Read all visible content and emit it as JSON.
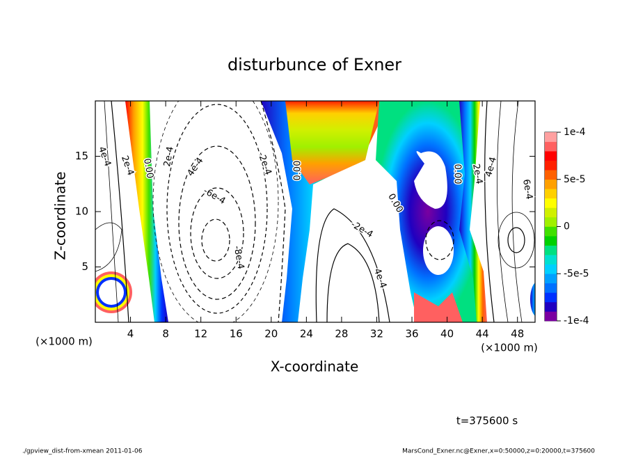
{
  "chart_data": {
    "type": "contour",
    "title": "disturbunce of Exner",
    "x_label": "X-coordinate",
    "y_label": "Z-coordinate",
    "x_unit": "(×1000 m)",
    "y_unit": "(×1000 m)",
    "xlim": [
      0,
      50
    ],
    "xticks": [
      4,
      8,
      12,
      16,
      20,
      24,
      28,
      32,
      36,
      40,
      44,
      48
    ],
    "ylim": [
      0,
      20
    ],
    "yticks": [
      5,
      10,
      15
    ],
    "clim": [
      -0.0001,
      0.0001
    ],
    "cticks": [
      {
        "value": 0.0001,
        "label": "1e-4"
      },
      {
        "value": 5e-05,
        "label": "5e-5"
      },
      0,
      {
        "value": -5e-05,
        "label": "-5e-5"
      },
      {
        "value": -0.0001,
        "label": "-1e-4"
      }
    ],
    "colormap": [
      "#7a00a0",
      "#2000c0",
      "#0030ff",
      "#0070ff",
      "#00a0ff",
      "#00d0ff",
      "#00e0d0",
      "#00e080",
      "#00d000",
      "#40e000",
      "#a0f000",
      "#d0f000",
      "#ffff00",
      "#ffd000",
      "#ffa000",
      "#ff6000",
      "#ff2000",
      "#ff0000",
      "#ff6060",
      "#ffa0a0"
    ],
    "contour_labels": [
      "4e-4",
      "2e-4",
      "0.00",
      "2e-4",
      "4e-4",
      "-6e-4",
      "-8e-4",
      "-2e-4",
      "0.00",
      "-2e-4",
      "4e-4",
      "0.00",
      "0.00",
      "2e-4",
      "4e-4",
      "6e-4"
    ],
    "time_label": "t=375600 s",
    "footer_left": "./gpview_dist-from-xmean  2011-01-06",
    "footer_right": "MarsCond_Exner.nc@Exner,x=0:50000,z=0:20000,t=375600"
  }
}
